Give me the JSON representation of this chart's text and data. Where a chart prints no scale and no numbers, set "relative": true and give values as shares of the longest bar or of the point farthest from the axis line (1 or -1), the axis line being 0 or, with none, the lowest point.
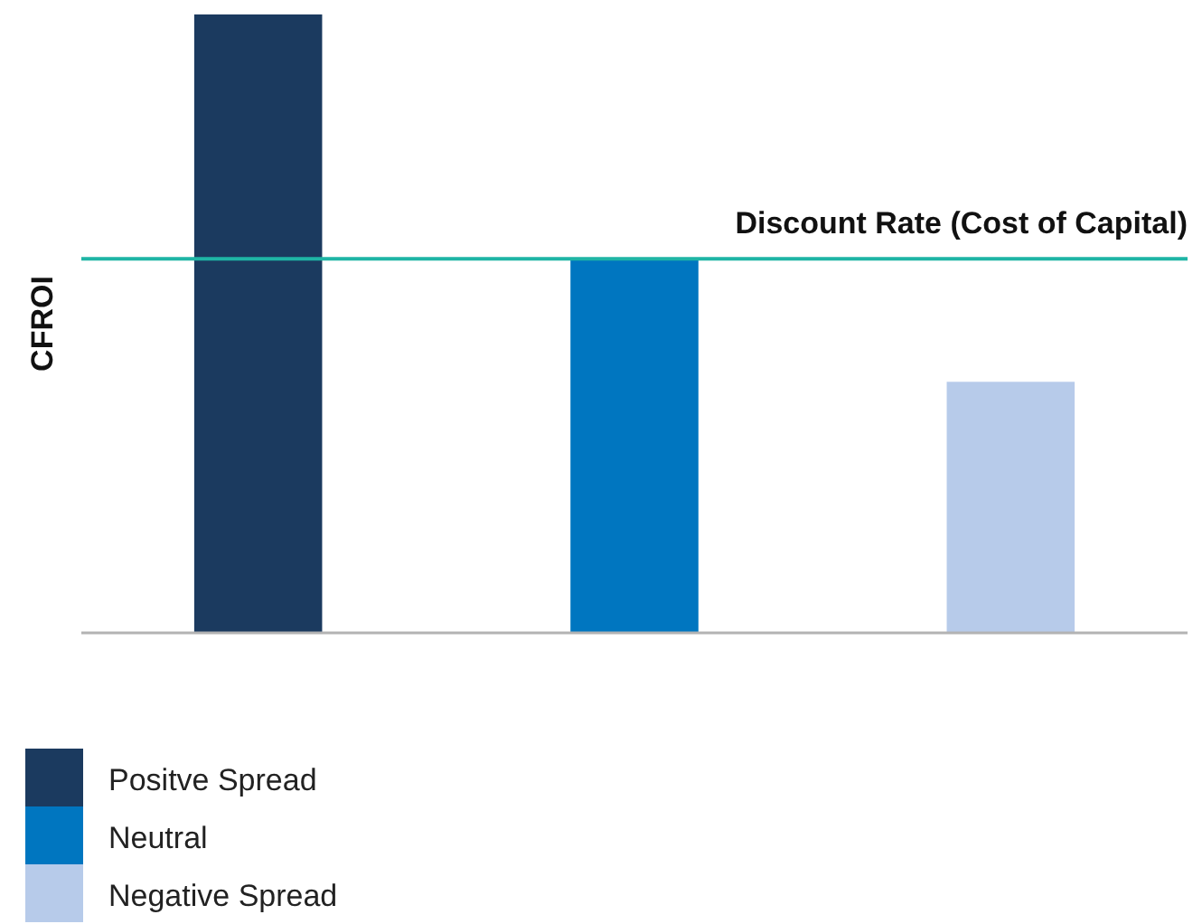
{
  "chart_data": {
    "type": "bar",
    "relative": true,
    "stacked": true,
    "ylabel": "CFROI",
    "categories": [
      null,
      null,
      null
    ],
    "series": [
      {
        "name": "Positve Spread",
        "color": "#1b3a5f",
        "values": [
          1,
          null,
          null
        ]
      },
      {
        "name": "Neutral",
        "color": "#0076c0",
        "values": [
          null,
          0.605,
          null
        ]
      },
      {
        "name": "Negative Spread",
        "color": "#b7cbea",
        "values": [
          null,
          null,
          0.406
        ]
      }
    ],
    "ref_lines": [
      {
        "axis": "y",
        "value": 0.605,
        "label": "Discount Rate (Cost of Capital)",
        "color": "#1fb5a5"
      }
    ],
    "legend": "bottom left"
  }
}
